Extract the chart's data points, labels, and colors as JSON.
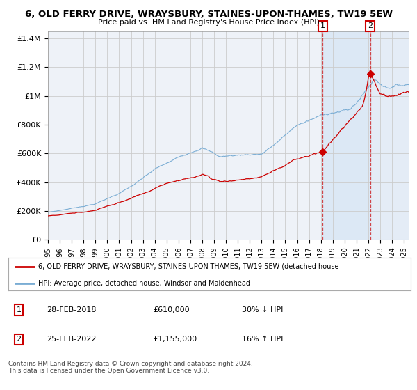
{
  "title": "6, OLD FERRY DRIVE, WRAYSBURY, STAINES-UPON-THAMES, TW19 5EW",
  "subtitle": "Price paid vs. HM Land Registry's House Price Index (HPI)",
  "red_color": "#cc0000",
  "blue_color": "#7aadd4",
  "background_plot": "#eef2f8",
  "background_fig": "#ffffff",
  "grid_color": "#cccccc",
  "shade_color": "#dce8f5",
  "hatch_color": "#bbccdd",
  "ylim": [
    0,
    1450000
  ],
  "yticks": [
    0,
    200000,
    400000,
    600000,
    800000,
    1000000,
    1200000,
    1400000
  ],
  "ytick_labels": [
    "£0",
    "£200K",
    "£400K",
    "£600K",
    "£800K",
    "£1M",
    "£1.2M",
    "£1.4M"
  ],
  "year_start": 1995,
  "year_end": 2025,
  "marker1_year": 2018.16,
  "marker1_value": 610000,
  "marker1_label": "28-FEB-2018",
  "marker1_price": "£610,000",
  "marker1_hpi": "30% ↓ HPI",
  "marker2_year": 2022.16,
  "marker2_value": 1155000,
  "marker2_label": "25-FEB-2022",
  "marker2_price": "£1,155,000",
  "marker2_hpi": "16% ↑ HPI",
  "legend_red": "6, OLD FERRY DRIVE, WRAYSBURY, STAINES-UPON-THAMES, TW19 5EW (detached house",
  "legend_blue": "HPI: Average price, detached house, Windsor and Maidenhead",
  "footer1": "Contains HM Land Registry data © Crown copyright and database right 2024.",
  "footer2": "This data is licensed under the Open Government Licence v3.0."
}
